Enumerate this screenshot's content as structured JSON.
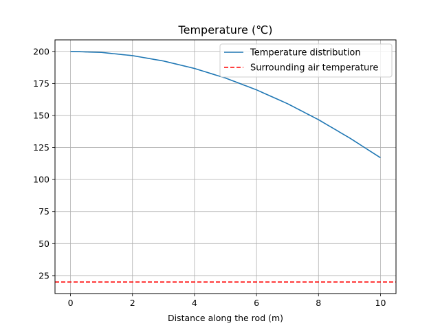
{
  "chart_data": {
    "type": "line",
    "title": "Temperature (℃)",
    "xlabel": "Distance along the rod (m)",
    "ylabel": "",
    "xlim": [
      -0.5,
      10.5
    ],
    "ylim": [
      11,
      209
    ],
    "xticks": [
      0,
      2,
      4,
      6,
      8,
      10
    ],
    "yticks": [
      25,
      50,
      75,
      100,
      125,
      150,
      175,
      200
    ],
    "grid": true,
    "legend_position": "top-right",
    "series": [
      {
        "name": "Temperature distribution",
        "style": "solid",
        "color": "#1f77b4",
        "x": [
          0,
          1,
          2,
          3,
          4,
          5,
          6,
          7,
          8,
          9,
          10
        ],
        "y": [
          200,
          199.2,
          196.7,
          192.5,
          186.7,
          179.2,
          170.0,
          159.2,
          146.7,
          132.5,
          117
        ]
      },
      {
        "name": "Surrounding air temperature",
        "style": "dashed",
        "color": "#ff0000",
        "y_constant": 20
      }
    ]
  }
}
